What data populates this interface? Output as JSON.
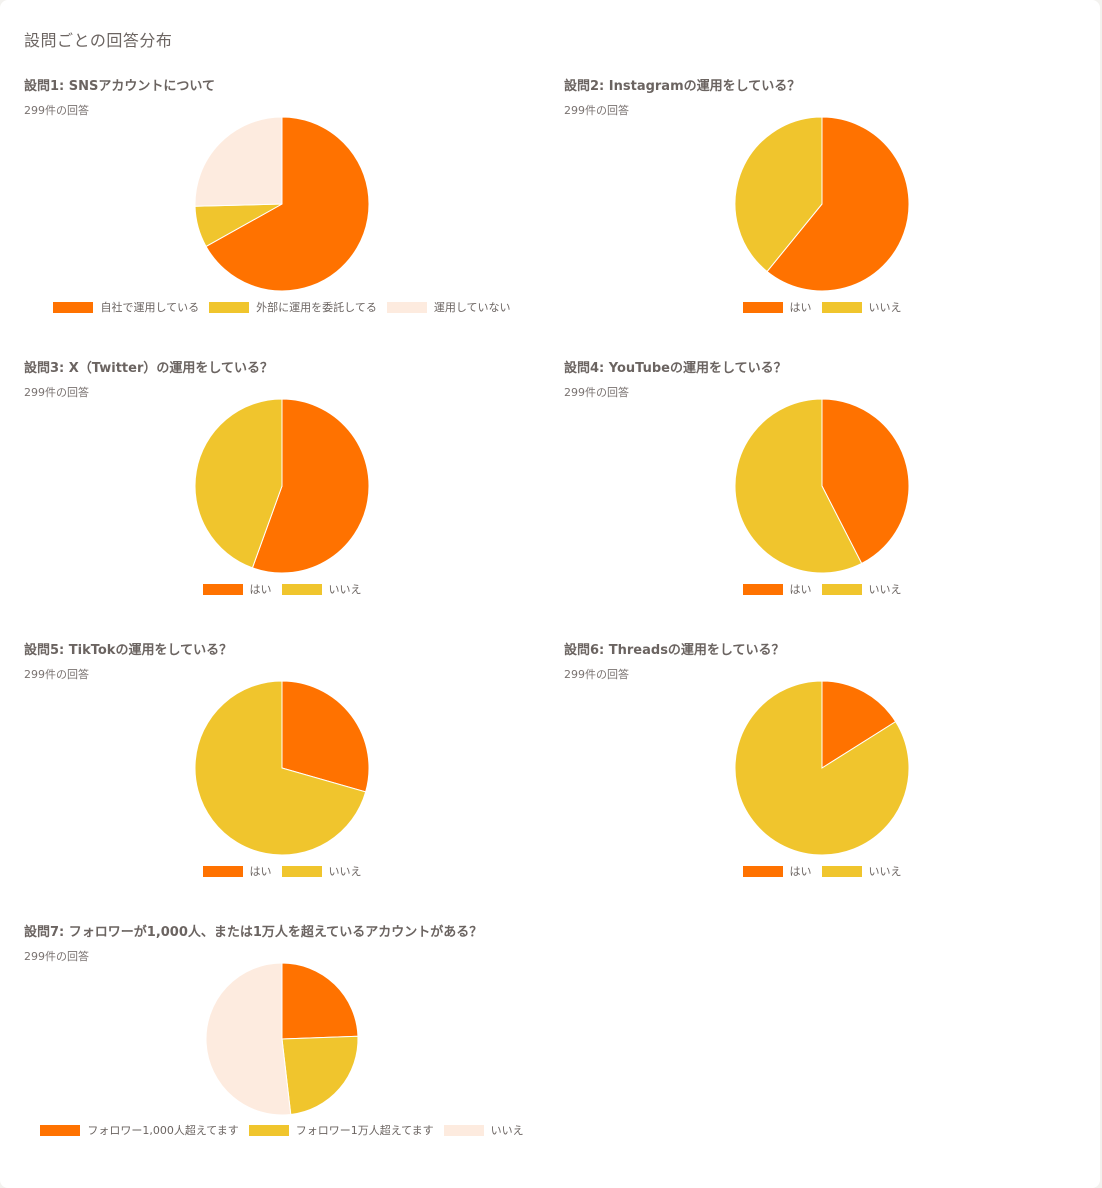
{
  "page": {
    "title": "設問ごとの回答分布"
  },
  "colors": {
    "primary": "#ff7200",
    "secondary": "#f0c52d",
    "tertiary": "#fdebdf"
  },
  "questions": [
    {
      "title": "設問1: SNSアカウントについて",
      "count": "299件の回答",
      "legend": [
        "自社で運用している",
        "外部に運用を委託してる",
        "運用していない"
      ]
    },
    {
      "title": "設問2: Instagramの運用をしている？",
      "count": "299件の回答",
      "legend": [
        "はい",
        "いいえ"
      ]
    },
    {
      "title": "設問3: X（Twitter）の運用をしている？",
      "count": "299件の回答",
      "legend": [
        "はい",
        "いいえ"
      ]
    },
    {
      "title": "設問4: YouTubeの運用をしている？",
      "count": "299件の回答",
      "legend": [
        "はい",
        "いいえ"
      ]
    },
    {
      "title": "設問5: TikTokの運用をしている？",
      "count": "299件の回答",
      "legend": [
        "はい",
        "いいえ"
      ]
    },
    {
      "title": "設問6: Threadsの運用をしている？",
      "count": "299件の回答",
      "legend": [
        "はい",
        "いいえ"
      ]
    },
    {
      "title": "設問7: フォロワーが1,000人、または1万人を超えているアカウントがある？",
      "count": "299件の回答",
      "legend": [
        "フォロワー1,000人超えてます",
        "フォロワー1万人超えてます",
        "いいえ"
      ]
    }
  ],
  "chart_data": [
    {
      "type": "pie",
      "title": "設問1: SNSアカウントについて",
      "total": 299,
      "categories": [
        "自社で運用している",
        "外部に運用を委託してる",
        "運用していない"
      ],
      "values": [
        200,
        23,
        76
      ],
      "colors": [
        "#ff7200",
        "#f0c52d",
        "#fdebdf"
      ]
    },
    {
      "type": "pie",
      "title": "設問2: Instagramの運用をしている？",
      "total": 299,
      "categories": [
        "はい",
        "いいえ"
      ],
      "values": [
        182,
        117
      ],
      "colors": [
        "#ff7200",
        "#f0c52d"
      ]
    },
    {
      "type": "pie",
      "title": "設問3: X（Twitter）の運用をしている？",
      "total": 299,
      "categories": [
        "はい",
        "いいえ"
      ],
      "values": [
        166,
        133
      ],
      "colors": [
        "#ff7200",
        "#f0c52d"
      ]
    },
    {
      "type": "pie",
      "title": "設問4: YouTubeの運用をしている？",
      "total": 299,
      "categories": [
        "はい",
        "いいえ"
      ],
      "values": [
        127,
        172
      ],
      "colors": [
        "#ff7200",
        "#f0c52d"
      ]
    },
    {
      "type": "pie",
      "title": "設問5: TikTokの運用をしている？",
      "total": 299,
      "categories": [
        "はい",
        "いいえ"
      ],
      "values": [
        88,
        211
      ],
      "colors": [
        "#ff7200",
        "#f0c52d"
      ]
    },
    {
      "type": "pie",
      "title": "設問6: Threadsの運用をしている？",
      "total": 299,
      "categories": [
        "はい",
        "いいえ"
      ],
      "values": [
        48,
        251
      ],
      "colors": [
        "#ff7200",
        "#f0c52d"
      ]
    },
    {
      "type": "pie",
      "title": "設問7: フォロワーが1,000人、または1万人を超えているアカウントがある？",
      "total": 299,
      "categories": [
        "フォロワー1,000人超えてます",
        "フォロワー1万人超えてます",
        "いいえ"
      ],
      "values": [
        73,
        71,
        155
      ],
      "colors": [
        "#ff7200",
        "#f0c52d",
        "#fdebdf"
      ]
    }
  ]
}
